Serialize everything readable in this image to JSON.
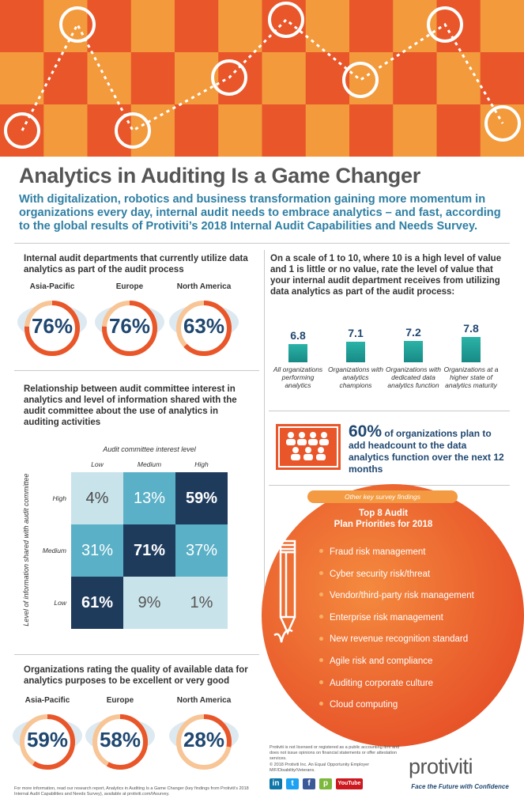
{
  "title": "Analytics in Auditing Is a Game Changer",
  "intro": "With digitalization, robotics and business transformation gaining more momentum in organizations every day, internal audit needs to embrace analytics – and fast, according to the global results of Protiviti’s 2018 Internal Audit Capabilities and Needs Survey.",
  "colors": {
    "orange": "#e8562a",
    "checker_light": "#f29a3c",
    "navy": "#1f4770",
    "teal": "#2bb3a7",
    "blue": "#2f7fa3"
  },
  "utilize": {
    "question": "Internal audit departments that currently utilize data analytics as part of the audit process",
    "regions": [
      {
        "name": "Asia-Pacific",
        "value": "76%",
        "fraction": 0.76
      },
      {
        "name": "Europe",
        "value": "76%",
        "fraction": 0.76
      },
      {
        "name": "North America",
        "value": "63%",
        "fraction": 0.63
      }
    ]
  },
  "value_scale": {
    "question": "On a scale of 1 to 10, where 10 is a high level of value and 1 is little or no value, rate the level of value that your internal audit department receives from utilizing data analytics as part of the audit process:",
    "chart_data": {
      "type": "bar",
      "categories": [
        "All organizations performing analytics",
        "Organizations with analytics champions",
        "Organizations with dedicated data analytics function",
        "Organizations at a higher state of analytics maturity"
      ],
      "values": [
        6.8,
        7.1,
        7.2,
        7.8
      ],
      "labels": [
        "6.8",
        "7.1",
        "7.2",
        "7.8"
      ]
    }
  },
  "relationship": {
    "question": "Relationship between audit committee interest in analytics and level of information shared with the audit committee about the use of analytics in auditing activities",
    "col_title": "Audit committee interest level",
    "row_title": "Level of information shared with audit committee",
    "cols": [
      "Low",
      "Medium",
      "High"
    ],
    "rows": [
      "High",
      "Medium",
      "Low"
    ],
    "cells": [
      [
        "4%",
        "13%",
        "59%"
      ],
      [
        "31%",
        "71%",
        "37%"
      ],
      [
        "61%",
        "9%",
        "1%"
      ]
    ]
  },
  "headcount": {
    "pct": "60%",
    "text": "of organizations plan to add headcount to the data analytics function over the next 12 months"
  },
  "findings": {
    "kicker": "Other key survey findings",
    "heading_line1": "Top 8 Audit",
    "heading_line2": "Plan Priorities for 2018",
    "items": [
      "Fraud risk management",
      "Cyber security risk/threat",
      "Vendor/third-party risk management",
      "Enterprise risk management",
      "New revenue recognition standard",
      "Agile risk and compliance",
      "Auditing corporate culture",
      "Cloud computing"
    ]
  },
  "quality": {
    "question": "Organizations rating the quality of available data for analytics purposes to be excellent or very good",
    "regions": [
      {
        "name": "Asia-Pacific",
        "value": "59%",
        "fraction": 0.59
      },
      {
        "name": "Europe",
        "value": "58%",
        "fraction": 0.58
      },
      {
        "name": "North America",
        "value": "28%",
        "fraction": 0.28
      }
    ]
  },
  "footer": {
    "research_note": "For more information, read our research report, Analytics in Auditing Is a Game Changer (key findings from Protiviti’s 2018 Internal Audit Capabilities and Needs Survey), available at protiviti.com/IAsurvey.",
    "disclaimer": "Protiviti is not licensed or registered as a public accounting firm and does not issue opinions on financial statements or offer attestation services.",
    "copyright": "© 2018 Protiviti Inc. An Equal Opportunity Employer M/F/Disability/Veterans.",
    "logo": "protiviti",
    "tagline": "Face the Future with Confidence",
    "social": [
      "in",
      "t",
      "f",
      "p",
      "YouTube"
    ]
  }
}
